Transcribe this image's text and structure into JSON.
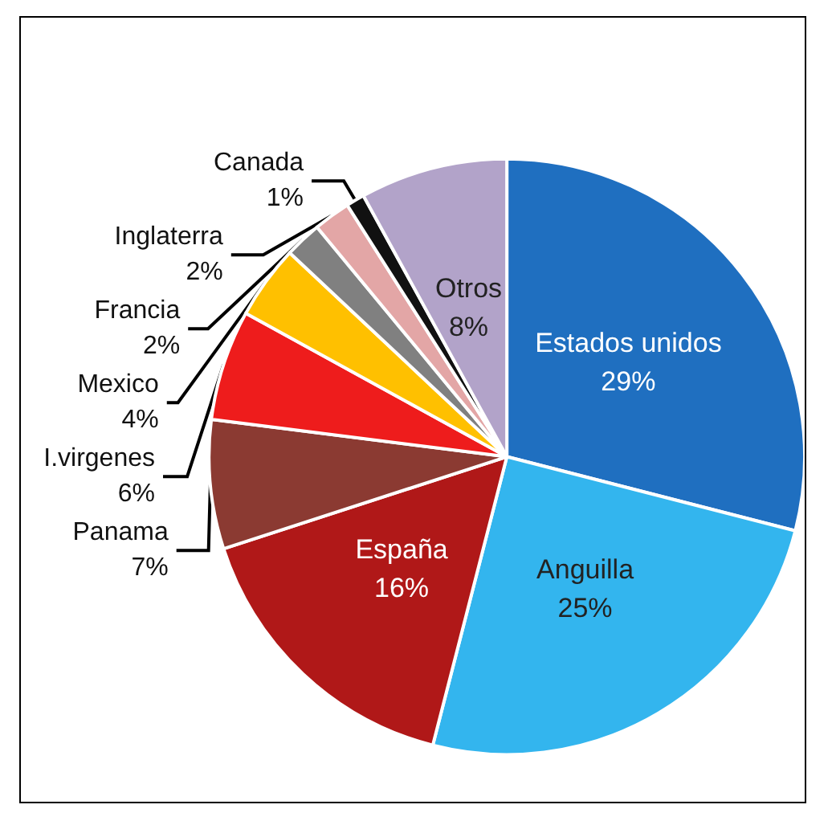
{
  "chart_data": {
    "type": "pie",
    "categories": [
      "Estados unidos",
      "Anguilla",
      "España",
      "Panama",
      "I.virgenes",
      "Mexico",
      "Francia",
      "Inglaterra",
      "Canada",
      "Otros"
    ],
    "values": [
      29,
      25,
      16,
      7,
      6,
      4,
      2,
      2,
      1,
      8
    ],
    "colors": [
      "#1f6fc0",
      "#33b5ee",
      "#b01818",
      "#8b3a32",
      "#ee1c1c",
      "#ffc000",
      "#808080",
      "#e3a6a6",
      "#111111",
      "#b2a3c9"
    ],
    "value_labels": [
      "29%",
      "25%",
      "16%",
      "7%",
      "6%",
      "4%",
      "2%",
      "2%",
      "1%",
      "8%"
    ],
    "legend": false
  }
}
